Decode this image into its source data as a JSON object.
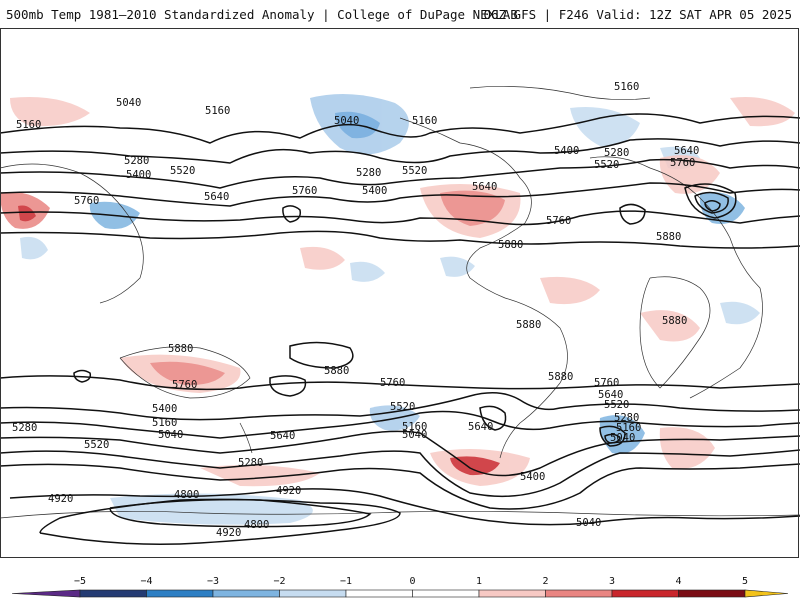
{
  "header": {
    "left_title": "500mb Temp 1981–2010 Standardized Anomaly | College of DuPage NEXLAB",
    "right_title": "06Z GFS | F246 Valid: 12Z SAT APR 05 2025"
  },
  "map": {
    "contour_labels": [
      {
        "text": "5040"
      },
      {
        "text": "5160"
      },
      {
        "text": "5160"
      },
      {
        "text": "5280"
      },
      {
        "text": "5400"
      },
      {
        "text": "5520"
      },
      {
        "text": "5640"
      },
      {
        "text": "5760"
      },
      {
        "text": "5760"
      },
      {
        "text": "5040"
      },
      {
        "text": "5160"
      },
      {
        "text": "5280"
      },
      {
        "text": "5400"
      },
      {
        "text": "5520"
      },
      {
        "text": "5640"
      },
      {
        "text": "5760"
      },
      {
        "text": "5880"
      },
      {
        "text": "5160"
      },
      {
        "text": "5400"
      },
      {
        "text": "5280"
      },
      {
        "text": "5520"
      },
      {
        "text": "5640"
      },
      {
        "text": "5760"
      },
      {
        "text": "5880"
      },
      {
        "text": "5880"
      },
      {
        "text": "5880"
      },
      {
        "text": "5880"
      },
      {
        "text": "5880"
      },
      {
        "text": "5880"
      },
      {
        "text": "5760"
      },
      {
        "text": "5400"
      },
      {
        "text": "5160"
      },
      {
        "text": "5040"
      },
      {
        "text": "5280"
      },
      {
        "text": "5520"
      },
      {
        "text": "5640"
      },
      {
        "text": "5760"
      },
      {
        "text": "5520"
      },
      {
        "text": "5160"
      },
      {
        "text": "5040"
      },
      {
        "text": "5640"
      },
      {
        "text": "5760"
      },
      {
        "text": "5640"
      },
      {
        "text": "5520"
      },
      {
        "text": "5280"
      },
      {
        "text": "5160"
      },
      {
        "text": "5040"
      },
      {
        "text": "5280"
      },
      {
        "text": "4920"
      },
      {
        "text": "4800"
      },
      {
        "text": "4920"
      },
      {
        "text": "4800"
      },
      {
        "text": "4920"
      },
      {
        "text": "5400"
      },
      {
        "text": "5040"
      }
    ]
  },
  "colorbar": {
    "ticks": [
      "−5",
      "−4",
      "−3",
      "−2",
      "−1",
      "0",
      "1",
      "2",
      "3",
      "4",
      "5"
    ],
    "colors": [
      "#5b2a86",
      "#243b73",
      "#2d7fc4",
      "#7eb4e0",
      "#c6dcf0",
      "#ffffff",
      "#ffffff",
      "#f7c9c4",
      "#e98582",
      "#c9262c",
      "#7a0d15",
      "#f2c21a"
    ]
  }
}
